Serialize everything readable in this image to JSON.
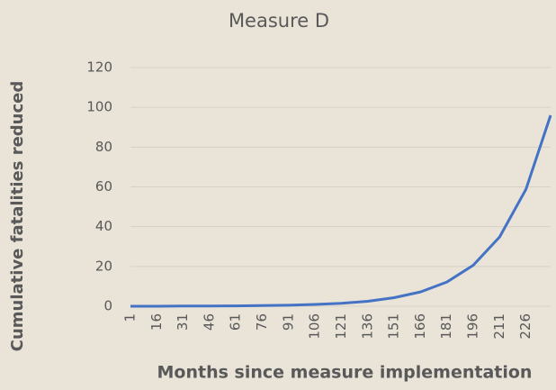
{
  "chart_data": {
    "type": "line",
    "title": "Measure D",
    "x_label": "Months since measure implementation",
    "y_label": "Cumulative fatalities reduced",
    "x": [
      1,
      16,
      31,
      46,
      61,
      76,
      91,
      106,
      121,
      136,
      151,
      166,
      181,
      196,
      211,
      226,
      240
    ],
    "series": [
      {
        "name": "Measure D",
        "color": "#4472c4",
        "values": [
          0,
          0,
          0.1,
          0.1,
          0.2,
          0.3,
          0.5,
          0.9,
          1.5,
          2.5,
          4.3,
          7.2,
          12.2,
          20.6,
          34.8,
          58.8,
          96
        ]
      }
    ],
    "xlim": [
      1,
      240
    ],
    "xticks": [
      1,
      16,
      31,
      46,
      61,
      76,
      91,
      106,
      121,
      136,
      151,
      166,
      181,
      196,
      211,
      226
    ],
    "ylim": [
      0,
      120
    ],
    "yticks": [
      0,
      20,
      40,
      60,
      80,
      100,
      120
    ],
    "grid": true
  }
}
